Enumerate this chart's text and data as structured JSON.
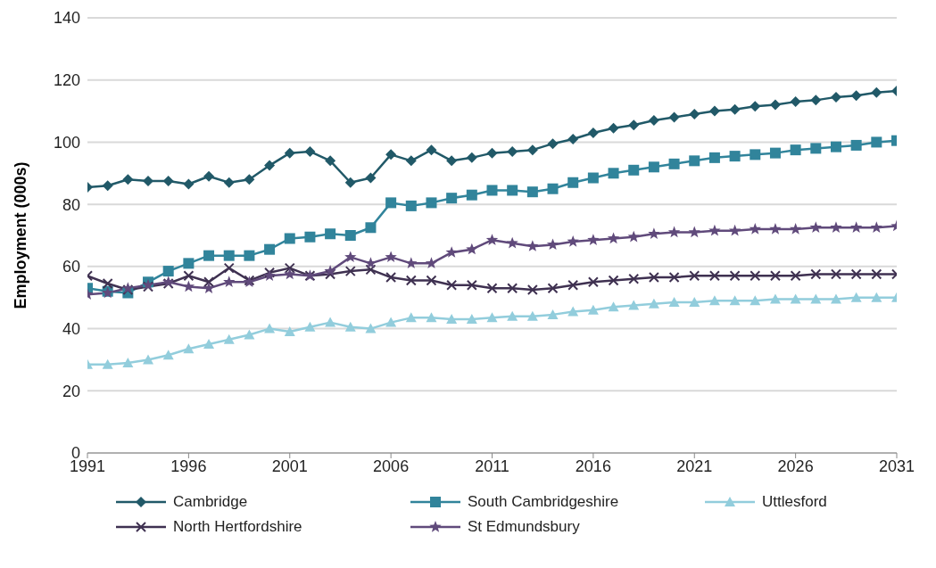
{
  "chart_data": {
    "type": "line",
    "ylabel": "Employment (000s)",
    "x": [
      1991,
      1992,
      1993,
      1994,
      1995,
      1996,
      1997,
      1998,
      1999,
      2000,
      2001,
      2002,
      2003,
      2004,
      2005,
      2006,
      2007,
      2008,
      2009,
      2010,
      2011,
      2012,
      2013,
      2014,
      2015,
      2016,
      2017,
      2018,
      2019,
      2020,
      2021,
      2022,
      2023,
      2024,
      2025,
      2026,
      2027,
      2028,
      2029,
      2030,
      2031
    ],
    "xlim": [
      1991,
      2031
    ],
    "xticks": [
      1991,
      1996,
      2001,
      2006,
      2011,
      2016,
      2021,
      2026,
      2031
    ],
    "ylim": [
      0,
      140
    ],
    "yticks": [
      0,
      20,
      40,
      60,
      80,
      100,
      120,
      140
    ],
    "grid": "y",
    "legend": "bottom",
    "line_style": "solid",
    "series": [
      {
        "name": "Cambridge",
        "color": "#215968",
        "marker": "diamond",
        "values": [
          85.5,
          86,
          88,
          87.5,
          87.5,
          86.5,
          89,
          87,
          88,
          92.5,
          96.5,
          97,
          94,
          87,
          88.5,
          96,
          94,
          97.5,
          94,
          95,
          96.5,
          97,
          97.5,
          99.5,
          101,
          103,
          104.5,
          105.5,
          107,
          108,
          109,
          110,
          110.5,
          111.5,
          112,
          113,
          113.5,
          114.5,
          115,
          116,
          116.5
        ]
      },
      {
        "name": "South Cambridgeshire",
        "color": "#31849b",
        "marker": "square",
        "values": [
          53,
          52,
          51.5,
          55,
          58.5,
          61,
          63.5,
          63.5,
          63.5,
          65.5,
          69,
          69.5,
          70.5,
          70,
          72.5,
          80.5,
          79.5,
          80.5,
          82,
          83,
          84.5,
          84.5,
          84,
          85,
          87,
          88.5,
          90,
          91,
          92,
          93,
          94,
          95,
          95.5,
          96,
          96.5,
          97.5,
          98,
          98.5,
          99,
          100,
          100.5
        ]
      },
      {
        "name": "Uttlesford",
        "color": "#92cddc",
        "marker": "triangle",
        "values": [
          28.5,
          28.5,
          29,
          30,
          31.5,
          33.5,
          35,
          36.5,
          38,
          40,
          39,
          40.5,
          42,
          40.5,
          40,
          42,
          43.5,
          43.5,
          43,
          43,
          43.5,
          44,
          44,
          44.5,
          45.5,
          46,
          47,
          47.5,
          48,
          48.5,
          48.5,
          49,
          49,
          49,
          49.5,
          49.5,
          49.5,
          49.5,
          50,
          50,
          50
        ]
      },
      {
        "name": "North Hertfordshire",
        "color": "#3f3151",
        "marker": "cross",
        "values": [
          57,
          54.5,
          52.5,
          53.5,
          54.5,
          57,
          55,
          59.5,
          55.5,
          58,
          59.5,
          57,
          57.5,
          58.5,
          59,
          56.5,
          55.5,
          55.5,
          54,
          54,
          53,
          53,
          52.5,
          53,
          54,
          55,
          55.5,
          56,
          56.5,
          56.5,
          57,
          57,
          57,
          57,
          57,
          57,
          57.5,
          57.5,
          57.5,
          57.5,
          57.5
        ]
      },
      {
        "name": "St Edmundsbury",
        "color": "#604a7b",
        "marker": "star",
        "values": [
          51,
          51.5,
          53,
          54,
          55,
          53.5,
          53,
          55,
          55,
          57,
          57.5,
          57,
          58.5,
          63,
          61,
          63,
          61,
          61,
          64.5,
          65.5,
          68.5,
          67.5,
          66.5,
          67,
          68,
          68.5,
          69,
          69.5,
          70.5,
          71,
          71,
          71.5,
          71.5,
          72,
          72,
          72,
          72.5,
          72.5,
          72.5,
          72.5,
          73
        ]
      }
    ]
  }
}
